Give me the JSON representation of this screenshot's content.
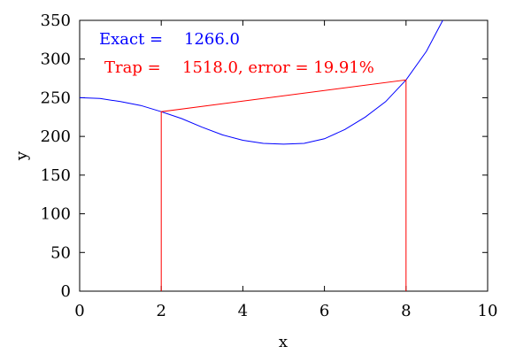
{
  "chart_data": {
    "type": "line",
    "title": "",
    "xlabel": "x",
    "ylabel": "y",
    "xlim": [
      0,
      10
    ],
    "ylim": [
      0,
      350
    ],
    "xticks": [
      0,
      2,
      4,
      6,
      8,
      10
    ],
    "yticks": [
      0,
      50,
      100,
      150,
      200,
      250,
      300,
      350
    ],
    "xtick_labels": [
      "0",
      "2",
      "4",
      "6",
      "8",
      "10"
    ],
    "ytick_labels": [
      "0",
      "50",
      "100",
      "150",
      "200",
      "250",
      "300",
      "350"
    ],
    "grid": false,
    "series": [
      {
        "color": "#0000ff",
        "x": [
          0,
          0.5,
          1,
          1.5,
          2,
          2.5,
          3,
          3.5,
          4,
          4.5,
          5,
          5.5,
          6,
          6.5,
          7,
          7.5,
          8,
          8.5,
          8.9
        ],
        "y": [
          250,
          249,
          245,
          240,
          232,
          223,
          212,
          202,
          195,
          191,
          190,
          191,
          197,
          209,
          225,
          245,
          273,
          310,
          350
        ]
      },
      {
        "color": "#ff0000",
        "x": [
          2,
          2,
          8,
          8
        ],
        "y": [
          0,
          232,
          273,
          0
        ]
      }
    ],
    "annotations": [
      {
        "label": "Exact =",
        "value": "1266.0",
        "color": "#0000ff"
      },
      {
        "label": "Trap =",
        "value": "1518.0, error = 19.91%",
        "color": "#ff0000"
      }
    ]
  }
}
